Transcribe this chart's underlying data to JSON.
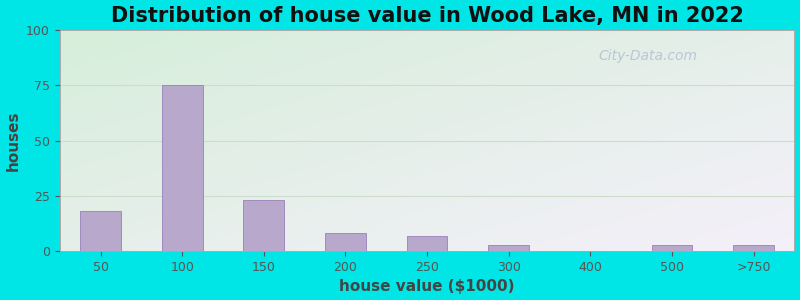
{
  "title": "Distribution of house value in Wood Lake, MN in 2022",
  "xlabel": "house value ($1000)",
  "ylabel": "houses",
  "background_outer": "#00e5e5",
  "bg_top_left": "#d6eeda",
  "bg_bottom_right": "#f5f0fa",
  "bar_color": "#b8a8cc",
  "bar_edge_color": "#9980bb",
  "ylim": [
    0,
    100
  ],
  "yticks": [
    0,
    25,
    50,
    75,
    100
  ],
  "categories": [
    "50",
    "100",
    "150",
    "200",
    "250",
    "300",
    "400",
    "500",
    ">750"
  ],
  "values": [
    18,
    75,
    23,
    8,
    7,
    3,
    0,
    3,
    3
  ],
  "title_fontsize": 15,
  "label_fontsize": 11,
  "tick_fontsize": 9,
  "watermark_text": "City-Data.com",
  "grid_color": "#ccddcc",
  "spine_color": "#aaaaaa"
}
